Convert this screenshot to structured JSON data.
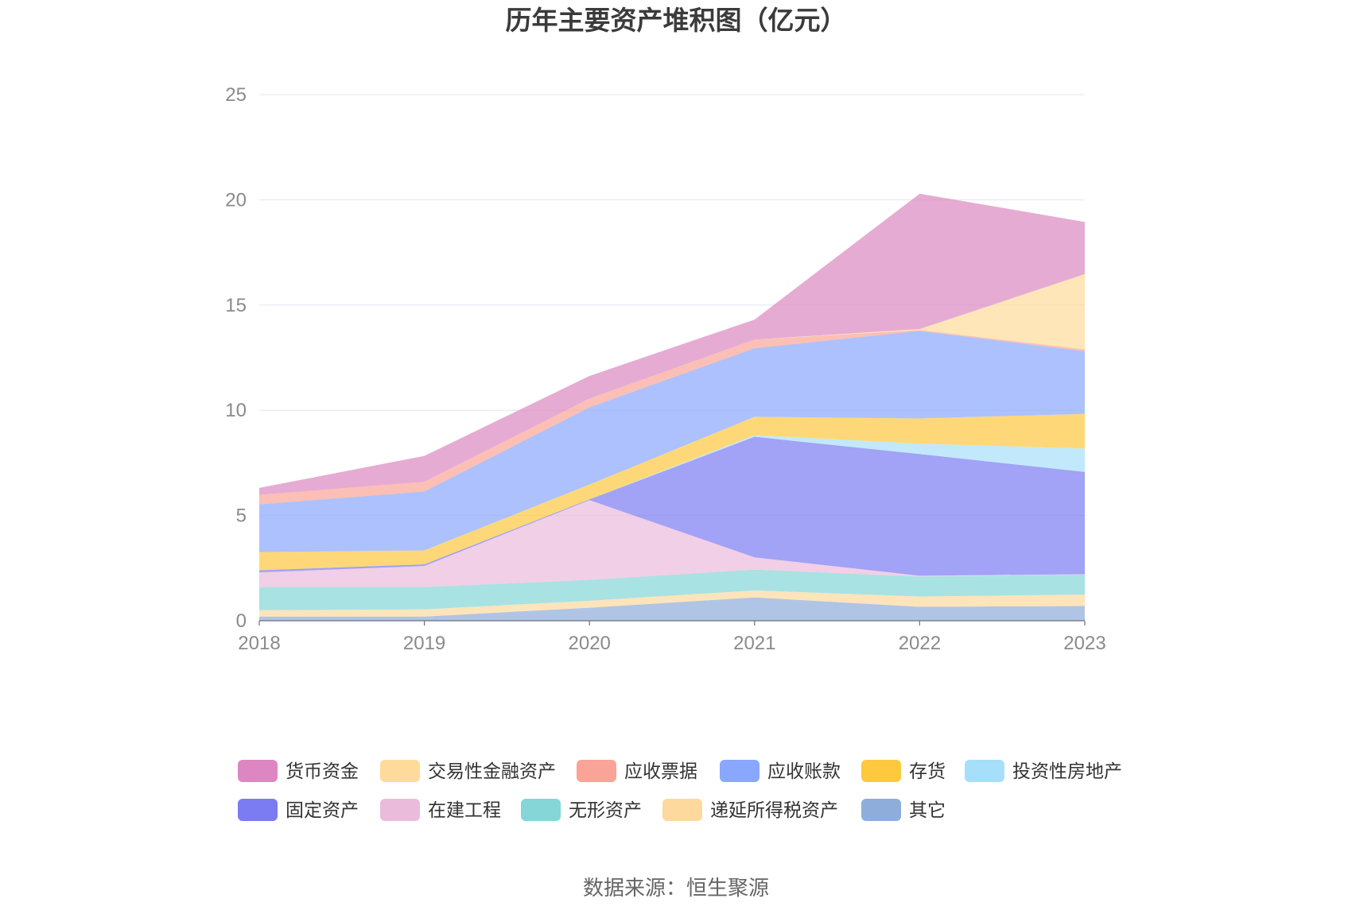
{
  "source": "数据来源：恒生聚源",
  "chart_data": {
    "type": "area",
    "stacked": true,
    "title": "历年主要资产堆积图（亿元）",
    "xlabel": "",
    "ylabel": "",
    "categories": [
      "2018",
      "2019",
      "2020",
      "2021",
      "2022",
      "2023"
    ],
    "ylim": [
      0,
      25
    ],
    "y_ticks": [
      0,
      5,
      10,
      15,
      20,
      25
    ],
    "grid": true,
    "legend_position": "bottom",
    "series": [
      {
        "name": "货币资金",
        "color": "#dc87c1",
        "values": [
          0.33,
          1.23,
          1.07,
          0.95,
          6.43,
          2.48
        ]
      },
      {
        "name": "交易性金融资产",
        "color": "#fedb9a",
        "values": [
          0.0,
          0.0,
          0.0,
          0.0,
          0.05,
          3.58
        ]
      },
      {
        "name": "应收票据",
        "color": "#f9a496",
        "values": [
          0.45,
          0.46,
          0.42,
          0.41,
          0.04,
          0.09
        ]
      },
      {
        "name": "应收账款",
        "color": "#89a7fc",
        "values": [
          2.27,
          2.8,
          3.67,
          3.26,
          4.16,
          2.97
        ]
      },
      {
        "name": "存货",
        "color": "#fec83f",
        "values": [
          0.86,
          0.66,
          0.7,
          0.87,
          1.2,
          1.65
        ]
      },
      {
        "name": "投资性房地产",
        "color": "#a6dff9",
        "values": [
          0.0,
          0.0,
          0.0,
          0.08,
          0.49,
          1.11
        ]
      },
      {
        "name": "固定资产",
        "color": "#7b7bf2",
        "values": [
          0.1,
          0.08,
          0.04,
          5.73,
          5.78,
          4.86
        ]
      },
      {
        "name": "在建工程",
        "color": "#ebbbdc",
        "values": [
          0.7,
          1.0,
          3.79,
          0.58,
          0.04,
          0.02
        ]
      },
      {
        "name": "无形资产",
        "color": "#85d6d6",
        "values": [
          1.1,
          1.06,
          0.99,
          0.99,
          0.95,
          0.95
        ]
      },
      {
        "name": "递延所得税资产",
        "color": "#fed99d",
        "values": [
          0.3,
          0.34,
          0.33,
          0.33,
          0.49,
          0.54
        ]
      },
      {
        "name": "其它",
        "color": "#8eaddb",
        "values": [
          0.2,
          0.2,
          0.62,
          1.11,
          0.66,
          0.7
        ]
      }
    ]
  }
}
